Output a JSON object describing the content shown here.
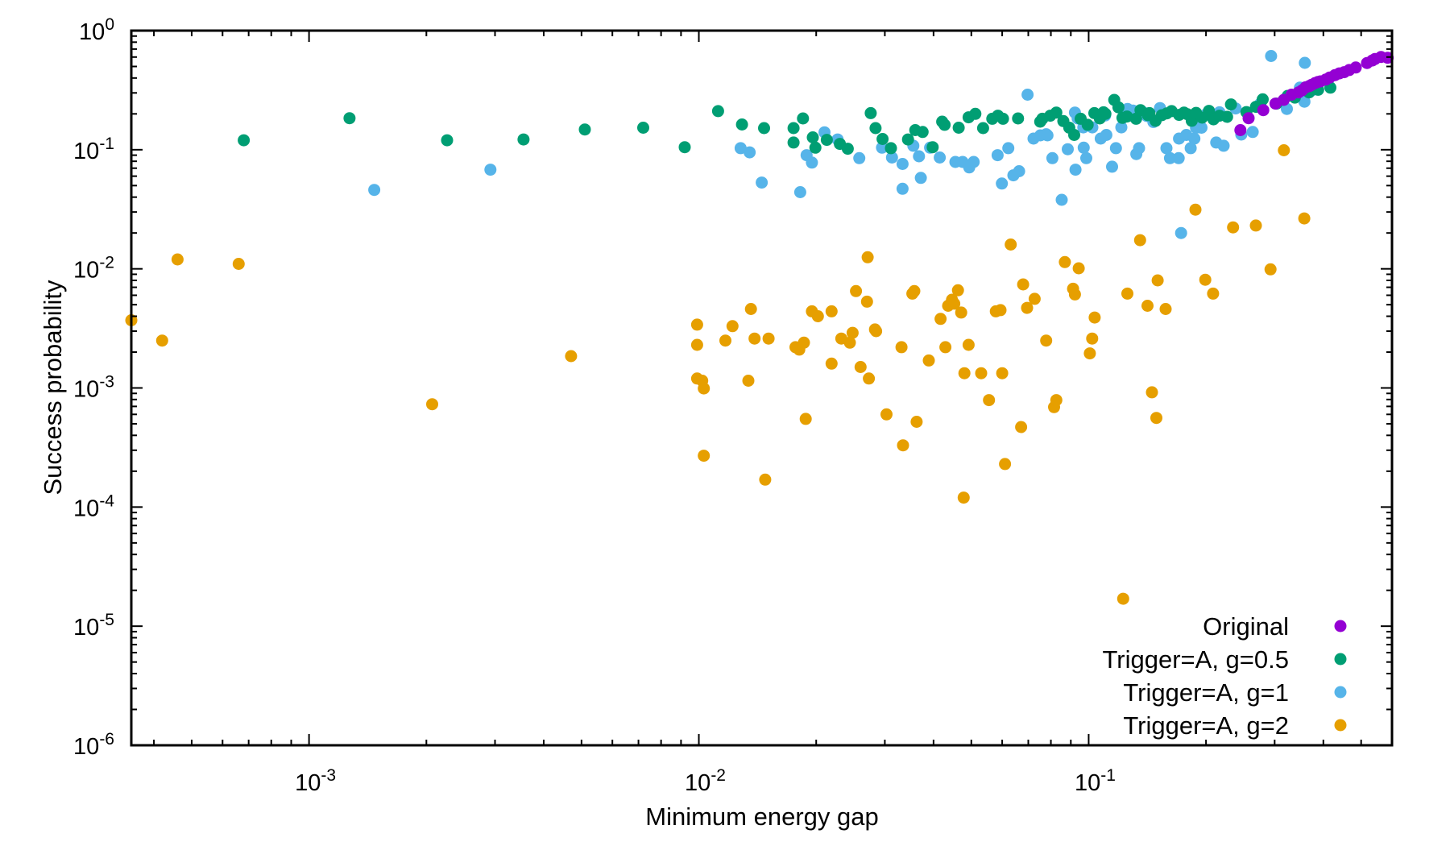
{
  "chart_data": {
    "type": "scatter",
    "xlabel": "Minimum energy gap",
    "ylabel": "Success probability",
    "x_scale": "log",
    "y_scale": "log",
    "xlim": [
      0.00035,
      0.6
    ],
    "ylim": [
      1e-06,
      1
    ],
    "grid": false,
    "legend_position": "bottom-right",
    "x_ticks": [
      {
        "value": 0.001,
        "base": "10",
        "exp": "-3"
      },
      {
        "value": 0.01,
        "base": "10",
        "exp": "-2"
      },
      {
        "value": 0.1,
        "base": "10",
        "exp": "-1"
      }
    ],
    "y_ticks": [
      {
        "value": 1,
        "base": "10",
        "exp": "0"
      },
      {
        "value": 0.1,
        "base": "10",
        "exp": "-1"
      },
      {
        "value": 0.01,
        "base": "10",
        "exp": "-2"
      },
      {
        "value": 0.001,
        "base": "10",
        "exp": "-3"
      },
      {
        "value": 0.0001,
        "base": "10",
        "exp": "-4"
      },
      {
        "value": 1e-05,
        "base": "10",
        "exp": "-5"
      },
      {
        "value": 1e-06,
        "base": "10",
        "exp": "-6"
      }
    ],
    "series": [
      {
        "name": "Trigger=A, g=2",
        "color": "#e69f00",
        "points": [
          [
            0.00035,
            0.0037
          ],
          [
            0.00042,
            0.0025
          ],
          [
            0.00046,
            0.012
          ],
          [
            0.00066,
            0.011
          ],
          [
            0.00207,
            0.00073
          ],
          [
            0.0047,
            0.00185
          ],
          [
            0.0099,
            0.0034
          ],
          [
            0.0099,
            0.0023
          ],
          [
            0.0099,
            0.0012
          ],
          [
            0.0102,
            0.00115
          ],
          [
            0.0103,
            0.00099
          ],
          [
            0.0103,
            0.00027
          ],
          [
            0.0117,
            0.0025
          ],
          [
            0.0122,
            0.0033
          ],
          [
            0.0134,
            0.00115
          ],
          [
            0.0136,
            0.0046
          ],
          [
            0.0139,
            0.0026
          ],
          [
            0.0148,
            0.00017
          ],
          [
            0.0151,
            0.0026
          ],
          [
            0.0177,
            0.0022
          ],
          [
            0.0181,
            0.0021
          ],
          [
            0.0186,
            0.0024
          ],
          [
            0.0188,
            0.00055
          ],
          [
            0.0195,
            0.0044
          ],
          [
            0.0202,
            0.004
          ],
          [
            0.0219,
            0.0044
          ],
          [
            0.0219,
            0.0016
          ],
          [
            0.0232,
            0.0026
          ],
          [
            0.0244,
            0.0024
          ],
          [
            0.0248,
            0.0029
          ],
          [
            0.0253,
            0.0065
          ],
          [
            0.026,
            0.0015
          ],
          [
            0.027,
            0.0053
          ],
          [
            0.0271,
            0.0125
          ],
          [
            0.0273,
            0.0012
          ],
          [
            0.0283,
            0.0031
          ],
          [
            0.0285,
            0.003
          ],
          [
            0.0303,
            0.0006
          ],
          [
            0.0331,
            0.0022
          ],
          [
            0.0334,
            0.00033
          ],
          [
            0.0353,
            0.0062
          ],
          [
            0.0357,
            0.0065
          ],
          [
            0.0362,
            0.00052
          ],
          [
            0.0389,
            0.0017
          ],
          [
            0.0417,
            0.0038
          ],
          [
            0.0429,
            0.0022
          ],
          [
            0.0436,
            0.0049
          ],
          [
            0.0446,
            0.0055
          ],
          [
            0.0452,
            0.0051
          ],
          [
            0.0462,
            0.0066
          ],
          [
            0.0471,
            0.0043
          ],
          [
            0.0478,
            0.00012
          ],
          [
            0.048,
            0.00133
          ],
          [
            0.0492,
            0.0023
          ],
          [
            0.053,
            0.00133
          ],
          [
            0.0555,
            0.00079
          ],
          [
            0.0578,
            0.0044
          ],
          [
            0.0594,
            0.0045
          ],
          [
            0.06,
            0.00133
          ],
          [
            0.061,
            0.00023
          ],
          [
            0.0631,
            0.016
          ],
          [
            0.0671,
            0.00047
          ],
          [
            0.0679,
            0.0074
          ],
          [
            0.0695,
            0.0047
          ],
          [
            0.0727,
            0.0056
          ],
          [
            0.0778,
            0.0025
          ],
          [
            0.0815,
            0.00069
          ],
          [
            0.0826,
            0.00079
          ],
          [
            0.0869,
            0.0114
          ],
          [
            0.0912,
            0.0068
          ],
          [
            0.0922,
            0.0061
          ],
          [
            0.0943,
            0.0101
          ],
          [
            0.1007,
            0.00195
          ],
          [
            0.1021,
            0.0026
          ],
          [
            0.1036,
            0.0039
          ],
          [
            0.1257,
            0.0062
          ],
          [
            0.1226,
            1.7e-05
          ],
          [
            0.1355,
            0.0174
          ],
          [
            0.1416,
            0.0049
          ],
          [
            0.1453,
            0.00092
          ],
          [
            0.1492,
            0.00056
          ],
          [
            0.1503,
            0.008
          ],
          [
            0.1576,
            0.0046
          ],
          [
            0.1879,
            0.0314
          ],
          [
            0.1991,
            0.0081
          ],
          [
            0.2085,
            0.0062
          ],
          [
            0.2346,
            0.0223
          ],
          [
            0.2685,
            0.0231
          ],
          [
            0.2928,
            0.0099
          ],
          [
            0.3169,
            0.099
          ],
          [
            0.3573,
            0.0265
          ]
        ]
      },
      {
        "name": "Trigger=A, g=1",
        "color": "#56b4e9",
        "points": [
          [
            0.00147,
            0.046
          ],
          [
            0.00292,
            0.068
          ],
          [
            0.0128,
            0.103
          ],
          [
            0.0135,
            0.095
          ],
          [
            0.0145,
            0.053
          ],
          [
            0.0182,
            0.044
          ],
          [
            0.0189,
            0.09
          ],
          [
            0.0195,
            0.078
          ],
          [
            0.021,
            0.14
          ],
          [
            0.0227,
            0.122
          ],
          [
            0.0258,
            0.085
          ],
          [
            0.0295,
            0.104
          ],
          [
            0.0313,
            0.086
          ],
          [
            0.0333,
            0.047
          ],
          [
            0.0333,
            0.076
          ],
          [
            0.0355,
            0.108
          ],
          [
            0.0367,
            0.088
          ],
          [
            0.0371,
            0.058
          ],
          [
            0.0392,
            0.104
          ],
          [
            0.0415,
            0.086
          ],
          [
            0.0455,
            0.079
          ],
          [
            0.0475,
            0.079
          ],
          [
            0.0494,
            0.071
          ],
          [
            0.0507,
            0.079
          ],
          [
            0.0584,
            0.09
          ],
          [
            0.0599,
            0.052
          ],
          [
            0.0622,
            0.103
          ],
          [
            0.0641,
            0.061
          ],
          [
            0.0663,
            0.066
          ],
          [
            0.0697,
            0.29
          ],
          [
            0.0722,
            0.124
          ],
          [
            0.0752,
            0.132
          ],
          [
            0.0778,
            0.135
          ],
          [
            0.0784,
            0.132
          ],
          [
            0.0807,
            0.085
          ],
          [
            0.0853,
            0.038
          ],
          [
            0.0884,
            0.101
          ],
          [
            0.0922,
            0.205
          ],
          [
            0.0925,
            0.068
          ],
          [
            0.0937,
            0.183
          ],
          [
            0.0969,
            0.154
          ],
          [
            0.0971,
            0.104
          ],
          [
            0.0986,
            0.085
          ],
          [
            0.1022,
            0.154
          ],
          [
            0.1074,
            0.124
          ],
          [
            0.1102,
            0.194
          ],
          [
            0.111,
            0.133
          ],
          [
            0.1148,
            0.072
          ],
          [
            0.1175,
            0.103
          ],
          [
            0.1213,
            0.154
          ],
          [
            0.1258,
            0.22
          ],
          [
            0.1299,
            0.213
          ],
          [
            0.1325,
            0.092
          ],
          [
            0.1347,
            0.103
          ],
          [
            0.1383,
            0.205
          ],
          [
            0.141,
            0.192
          ],
          [
            0.1466,
            0.171
          ],
          [
            0.1524,
            0.224
          ],
          [
            0.1583,
            0.103
          ],
          [
            0.1617,
            0.085
          ],
          [
            0.1702,
            0.085
          ],
          [
            0.1705,
            0.124
          ],
          [
            0.1726,
            0.02
          ],
          [
            0.1781,
            0.133
          ],
          [
            0.1827,
            0.103
          ],
          [
            0.1867,
            0.124
          ],
          [
            0.1885,
            0.153
          ],
          [
            0.1923,
            0.154
          ],
          [
            0.1947,
            0.153
          ],
          [
            0.2008,
            0.2
          ],
          [
            0.2124,
            0.115
          ],
          [
            0.2165,
            0.206
          ],
          [
            0.2219,
            0.108
          ],
          [
            0.2382,
            0.222
          ],
          [
            0.2463,
            0.134
          ],
          [
            0.2636,
            0.141
          ],
          [
            0.2759,
            0.244
          ],
          [
            0.2938,
            0.612
          ],
          [
            0.3224,
            0.22
          ],
          [
            0.3371,
            0.279
          ],
          [
            0.3483,
            0.332
          ],
          [
            0.3577,
            0.253
          ],
          [
            0.3586,
            0.536
          ],
          [
            0.3724,
            0.313
          ]
        ]
      },
      {
        "name": "Trigger=A, g=0.5",
        "color": "#009e73",
        "points": [
          [
            0.00068,
            0.12
          ],
          [
            0.00127,
            0.184
          ],
          [
            0.00226,
            0.12
          ],
          [
            0.00355,
            0.122
          ],
          [
            0.0051,
            0.148
          ],
          [
            0.0072,
            0.153
          ],
          [
            0.0092,
            0.105
          ],
          [
            0.0112,
            0.211
          ],
          [
            0.0129,
            0.163
          ],
          [
            0.0147,
            0.152
          ],
          [
            0.0175,
            0.152
          ],
          [
            0.0185,
            0.183
          ],
          [
            0.0175,
            0.115
          ],
          [
            0.0199,
            0.104
          ],
          [
            0.0196,
            0.127
          ],
          [
            0.0213,
            0.121
          ],
          [
            0.023,
            0.112
          ],
          [
            0.0241,
            0.102
          ],
          [
            0.0276,
            0.203
          ],
          [
            0.0284,
            0.152
          ],
          [
            0.0296,
            0.123
          ],
          [
            0.0311,
            0.103
          ],
          [
            0.0344,
            0.122
          ],
          [
            0.0359,
            0.146
          ],
          [
            0.0375,
            0.141
          ],
          [
            0.0398,
            0.105
          ],
          [
            0.0421,
            0.172
          ],
          [
            0.0427,
            0.162
          ],
          [
            0.0464,
            0.153
          ],
          [
            0.0492,
            0.187
          ],
          [
            0.0512,
            0.2
          ],
          [
            0.0536,
            0.152
          ],
          [
            0.0566,
            0.182
          ],
          [
            0.0585,
            0.193
          ],
          [
            0.0603,
            0.182
          ],
          [
            0.0659,
            0.183
          ],
          [
            0.0751,
            0.172
          ],
          [
            0.0761,
            0.182
          ],
          [
            0.0797,
            0.193
          ],
          [
            0.0826,
            0.205
          ],
          [
            0.0861,
            0.174
          ],
          [
            0.0892,
            0.153
          ],
          [
            0.0918,
            0.133
          ],
          [
            0.0954,
            0.182
          ],
          [
            0.0994,
            0.162
          ],
          [
            0.1034,
            0.203
          ],
          [
            0.1068,
            0.183
          ],
          [
            0.1092,
            0.206
          ],
          [
            0.1104,
            0.2
          ],
          [
            0.1163,
            0.262
          ],
          [
            0.1192,
            0.227
          ],
          [
            0.1221,
            0.185
          ],
          [
            0.1254,
            0.19
          ],
          [
            0.1323,
            0.182
          ],
          [
            0.1358,
            0.215
          ],
          [
            0.1419,
            0.195
          ],
          [
            0.1432,
            0.203
          ],
          [
            0.1485,
            0.175
          ],
          [
            0.154,
            0.195
          ],
          [
            0.1586,
            0.202
          ],
          [
            0.1632,
            0.211
          ],
          [
            0.1706,
            0.196
          ],
          [
            0.1756,
            0.205
          ],
          [
            0.1791,
            0.199
          ],
          [
            0.1838,
            0.175
          ],
          [
            0.1886,
            0.204
          ],
          [
            0.1955,
            0.186
          ],
          [
            0.2035,
            0.212
          ],
          [
            0.209,
            0.18
          ],
          [
            0.2165,
            0.193
          ],
          [
            0.2265,
            0.189
          ],
          [
            0.2318,
            0.24
          ],
          [
            0.2539,
            0.207
          ],
          [
            0.2686,
            0.229
          ],
          [
            0.2766,
            0.226
          ],
          [
            0.2796,
            0.265
          ],
          [
            0.3034,
            0.244
          ],
          [
            0.324,
            0.283
          ],
          [
            0.338,
            0.274
          ],
          [
            0.3675,
            0.303
          ],
          [
            0.3879,
            0.319
          ],
          [
            0.4169,
            0.332
          ]
        ]
      },
      {
        "name": "Original",
        "color": "#9400d3",
        "points": [
          [
            0.245,
            0.146
          ],
          [
            0.2572,
            0.184
          ],
          [
            0.2805,
            0.215
          ],
          [
            0.3016,
            0.244
          ],
          [
            0.3165,
            0.262
          ],
          [
            0.3315,
            0.29
          ],
          [
            0.3453,
            0.303
          ],
          [
            0.3526,
            0.315
          ],
          [
            0.3601,
            0.334
          ],
          [
            0.3678,
            0.342
          ],
          [
            0.3729,
            0.35
          ],
          [
            0.3809,
            0.363
          ],
          [
            0.3875,
            0.371
          ],
          [
            0.3933,
            0.375
          ],
          [
            0.4055,
            0.388
          ],
          [
            0.4151,
            0.404
          ],
          [
            0.4283,
            0.423
          ],
          [
            0.4395,
            0.437
          ],
          [
            0.4522,
            0.448
          ],
          [
            0.4661,
            0.467
          ],
          [
            0.4843,
            0.49
          ],
          [
            0.5176,
            0.535
          ],
          [
            0.5341,
            0.561
          ],
          [
            0.5426,
            0.578
          ],
          [
            0.5624,
            0.601
          ],
          [
            0.5849,
            0.592
          ]
        ]
      }
    ]
  }
}
